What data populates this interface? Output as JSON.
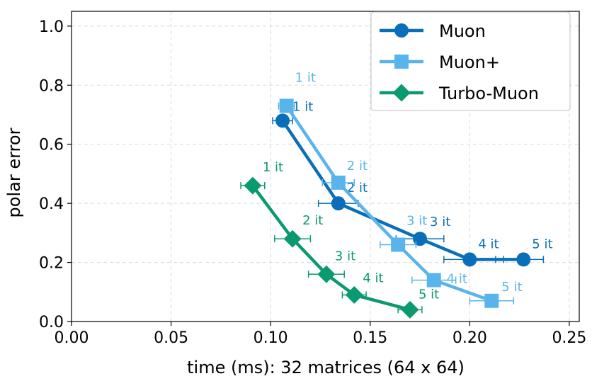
{
  "chart_data": {
    "type": "line",
    "title": "",
    "xlabel": "time (ms): 32 matrices (64 x 64)",
    "ylabel": "polar error",
    "xlim": [
      0.0,
      0.255
    ],
    "ylim": [
      0.0,
      1.05
    ],
    "xticks": [
      0.0,
      0.05,
      0.1,
      0.15,
      0.2,
      0.25
    ],
    "xtick_labels": [
      "0.00",
      "0.05",
      "0.10",
      "0.15",
      "0.20",
      "0.25"
    ],
    "yticks": [
      0.0,
      0.2,
      0.4,
      0.6,
      0.8,
      1.0
    ],
    "ytick_labels": [
      "0.0",
      "0.2",
      "0.4",
      "0.6",
      "0.8",
      "1.0"
    ],
    "grid": true,
    "legend_position": "top-right",
    "series": [
      {
        "name": "Muon",
        "color": "#0a6fb8",
        "marker": "circle",
        "x": [
          0.106,
          0.134,
          0.175,
          0.2,
          0.227
        ],
        "y": [
          0.68,
          0.4,
          0.28,
          0.21,
          0.21
        ],
        "xerr": [
          0.005,
          0.01,
          0.012,
          0.013,
          0.01
        ],
        "labels": [
          "1 it",
          "2 it",
          "3 it",
          "4 it",
          "5 it"
        ]
      },
      {
        "name": "Muon+",
        "color": "#5ab4ec",
        "marker": "square",
        "x": [
          0.108,
          0.134,
          0.164,
          0.182,
          0.211
        ],
        "y": [
          0.73,
          0.47,
          0.26,
          0.14,
          0.07
        ],
        "xerr": [
          0.004,
          0.008,
          0.009,
          0.011,
          0.011
        ],
        "labels": [
          "1 it",
          "2 it",
          "3 it",
          "4 it",
          "5 it"
        ]
      },
      {
        "name": "Turbo-Muon",
        "color": "#0b9a6f",
        "marker": "diamond",
        "x": [
          0.091,
          0.111,
          0.128,
          0.142,
          0.17
        ],
        "y": [
          0.46,
          0.28,
          0.16,
          0.09,
          0.04
        ],
        "xerr": [
          0.006,
          0.009,
          0.009,
          0.006,
          0.006
        ],
        "labels": [
          "1 it",
          "2 it",
          "3 it",
          "4 it",
          "5 it"
        ]
      }
    ]
  }
}
